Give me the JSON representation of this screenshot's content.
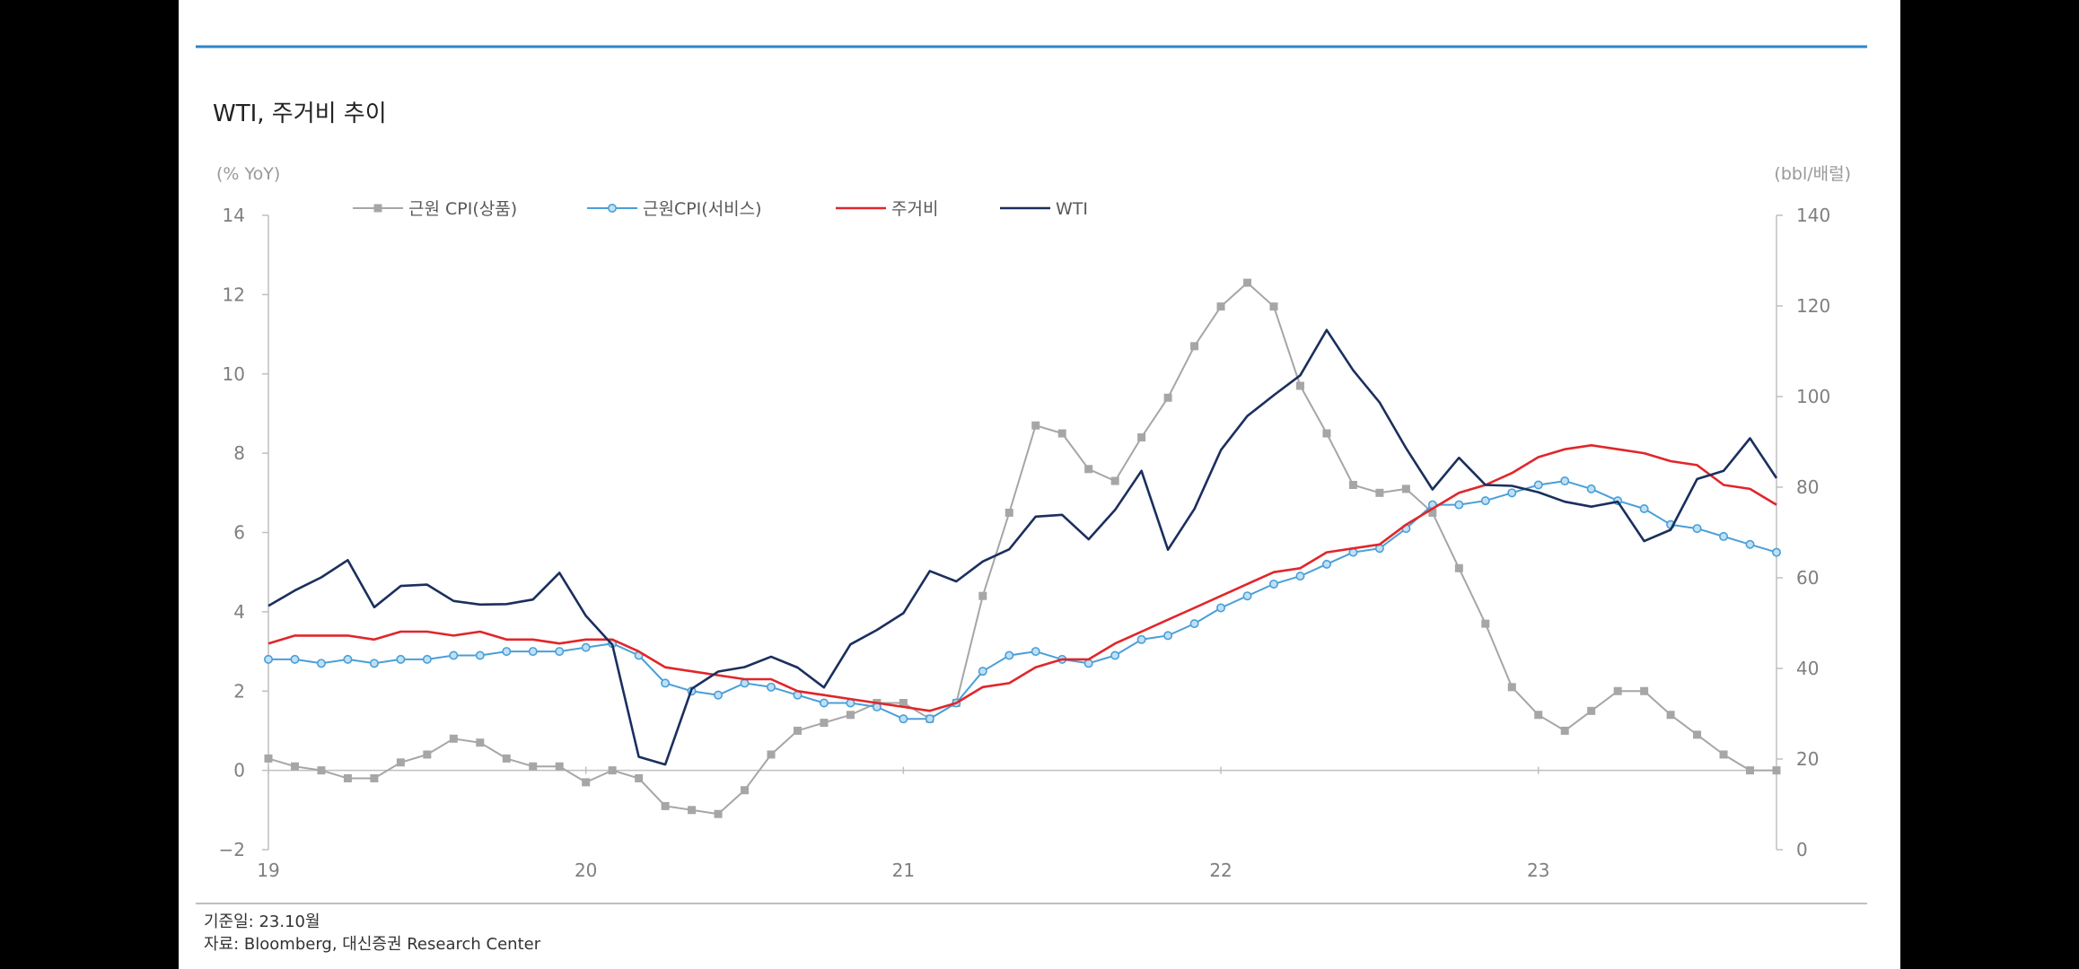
{
  "title": "WTI, 주거비 추이",
  "left_axis_unit": "(% YoY)",
  "right_axis_unit": "(bbl/배럴)",
  "footnote": {
    "base_date": "기준일: 23.10월",
    "source": "자료: Bloomberg, 대신증권 Research Center"
  },
  "colors": {
    "accent_rule": "#2e86c8",
    "goods": "#a6a6a6",
    "services": "#4a9fd8",
    "shelter": "#e0262a",
    "wti": "#1b2f5e",
    "axis": "#bfbfbf",
    "text": "#7f7f7f"
  },
  "chart_data": {
    "type": "line",
    "x_tick_labels": [
      "19",
      "20",
      "21",
      "22",
      "23"
    ],
    "x_period": "monthly, Jan 2019 – Oct 2023",
    "y_left": {
      "label": "(% YoY)",
      "range": [
        -2,
        14
      ],
      "ticks": [
        -2,
        0,
        2,
        4,
        6,
        8,
        10,
        12,
        14
      ]
    },
    "y_right": {
      "label": "(bbl/배럴)",
      "range": [
        0,
        140
      ],
      "ticks": [
        0,
        20,
        40,
        60,
        80,
        100,
        120,
        140
      ]
    },
    "grid": false,
    "legend_position": "top-left",
    "series": [
      {
        "name": "근원 CPI(상품)",
        "axis": "left",
        "marker": "square",
        "values": [
          0.3,
          0.1,
          0.0,
          -0.2,
          -0.2,
          0.2,
          0.4,
          0.8,
          0.7,
          0.3,
          0.1,
          0.1,
          -0.3,
          0.0,
          -0.2,
          -0.9,
          -1.0,
          -1.1,
          -0.5,
          0.4,
          1.0,
          1.2,
          1.4,
          1.7,
          1.7,
          1.3,
          1.7,
          4.4,
          6.5,
          8.7,
          8.5,
          7.6,
          7.3,
          8.4,
          9.4,
          10.7,
          11.7,
          12.3,
          11.7,
          9.7,
          8.5,
          7.2,
          7.0,
          7.1,
          6.5,
          5.1,
          3.7,
          2.1,
          1.4,
          1.0,
          1.5,
          2.0,
          2.0,
          1.4,
          0.9,
          0.4,
          0.0,
          0.0
        ]
      },
      {
        "name": "근원CPI(서비스)",
        "axis": "left",
        "marker": "circle",
        "values": [
          2.8,
          2.8,
          2.7,
          2.8,
          2.7,
          2.8,
          2.8,
          2.9,
          2.9,
          3.0,
          3.0,
          3.0,
          3.1,
          3.2,
          2.9,
          2.2,
          2.0,
          1.9,
          2.2,
          2.1,
          1.9,
          1.7,
          1.7,
          1.6,
          1.3,
          1.3,
          1.7,
          2.5,
          2.9,
          3.0,
          2.8,
          2.7,
          2.9,
          3.3,
          3.4,
          3.7,
          4.1,
          4.4,
          4.7,
          4.9,
          5.2,
          5.5,
          5.6,
          6.1,
          6.7,
          6.7,
          6.8,
          7.0,
          7.2,
          7.3,
          7.1,
          6.8,
          6.6,
          6.2,
          6.1,
          5.9,
          5.7,
          5.5
        ]
      },
      {
        "name": "주거비",
        "axis": "left",
        "marker": "none",
        "values": [
          3.2,
          3.4,
          3.4,
          3.4,
          3.3,
          3.5,
          3.5,
          3.4,
          3.5,
          3.3,
          3.3,
          3.2,
          3.3,
          3.3,
          3.0,
          2.6,
          2.5,
          2.4,
          2.3,
          2.3,
          2.0,
          1.9,
          1.8,
          1.7,
          1.6,
          1.5,
          1.7,
          2.1,
          2.2,
          2.6,
          2.8,
          2.8,
          3.2,
          3.5,
          3.8,
          4.1,
          4.4,
          4.7,
          5.0,
          5.1,
          5.5,
          5.6,
          5.7,
          6.2,
          6.6,
          7.0,
          7.2,
          7.5,
          7.9,
          8.1,
          8.2,
          8.1,
          8.0,
          7.8,
          7.7,
          7.2,
          7.1,
          6.7
        ]
      },
      {
        "name": "WTI",
        "axis": "right",
        "marker": "none",
        "values": [
          53.8,
          57.2,
          60.1,
          63.9,
          53.5,
          58.2,
          58.5,
          54.9,
          54.1,
          54.2,
          55.2,
          61.1,
          51.6,
          45.2,
          20.5,
          18.8,
          35.5,
          39.3,
          40.3,
          42.6,
          40.2,
          35.8,
          45.3,
          48.5,
          52.2,
          61.5,
          59.2,
          63.6,
          66.3,
          73.5,
          73.9,
          68.5,
          75.0,
          83.6,
          66.2,
          75.2,
          88.2,
          95.7,
          100.3,
          104.7,
          114.7,
          105.8,
          98.7,
          88.6,
          79.5,
          86.5,
          80.5,
          80.3,
          78.9,
          76.8,
          75.7,
          76.8,
          68.1,
          70.6,
          81.8,
          83.6,
          90.8,
          82.0
        ]
      }
    ]
  }
}
